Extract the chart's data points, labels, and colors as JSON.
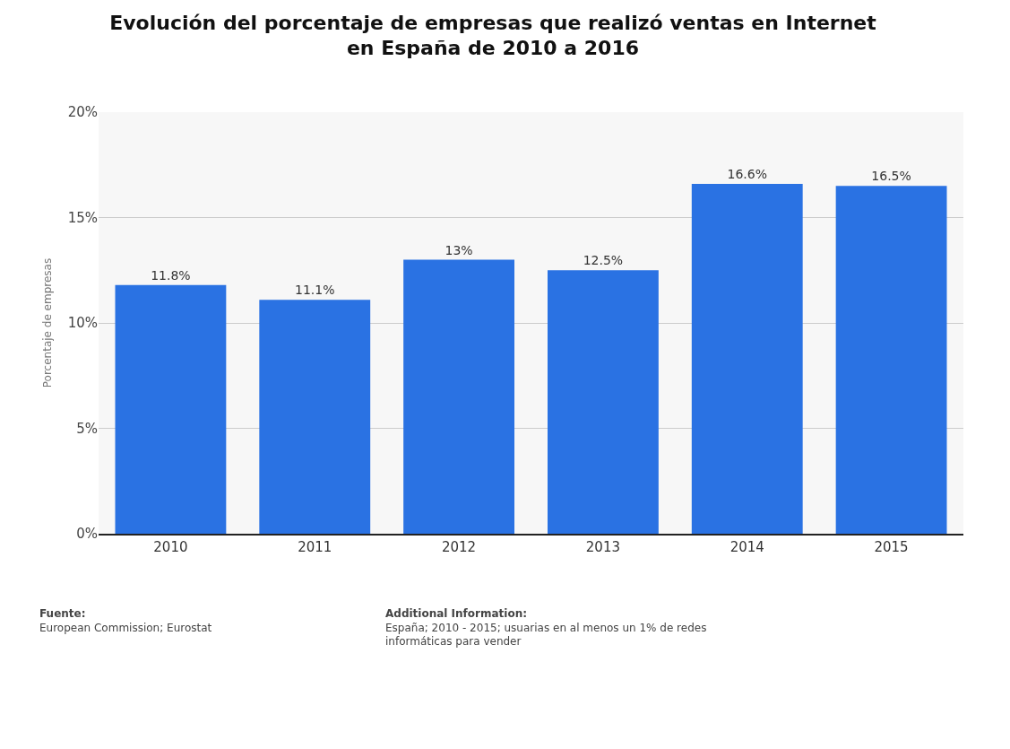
{
  "chart_data": {
    "type": "bar",
    "title": "Evolución del porcentaje de empresas que realizó ventas en Internet\nen España de 2010 a 2016",
    "ylabel": "Porcentaje de empresas",
    "categories": [
      "2010",
      "2011",
      "2012",
      "2013",
      "2014",
      "2015"
    ],
    "values": [
      11.8,
      11.1,
      13,
      12.5,
      16.6,
      16.5
    ],
    "value_labels": [
      "11.8%",
      "11.1%",
      "13%",
      "12.5%",
      "16.6%",
      "16.5%"
    ],
    "color": "#2a72e3",
    "ylim": [
      0,
      20
    ],
    "yticks": [
      {
        "value": 0,
        "label": "0%"
      },
      {
        "value": 5,
        "label": "5%"
      },
      {
        "value": 10,
        "label": "10%"
      },
      {
        "value": 15,
        "label": "15%"
      },
      {
        "value": 20,
        "label": "20%"
      }
    ],
    "grid": "y",
    "annotations": [
      "Fuente:\nEuropean Commission; Eurostat",
      "Additional Information:\nEspaña; 2010 - 2015; usuarias en al menos un 1% de redes\ninformáticas para vender"
    ]
  }
}
